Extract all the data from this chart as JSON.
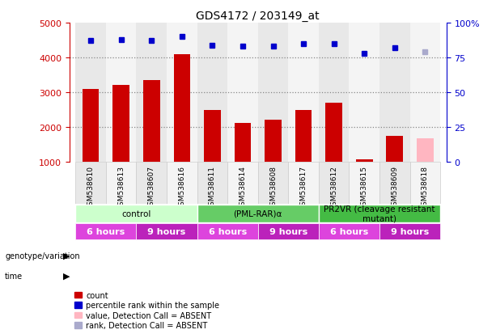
{
  "title": "GDS4172 / 203149_at",
  "samples": [
    "GSM538610",
    "GSM538613",
    "GSM538607",
    "GSM538616",
    "GSM538611",
    "GSM538614",
    "GSM538608",
    "GSM538617",
    "GSM538612",
    "GSM538615",
    "GSM538609",
    "GSM538618"
  ],
  "count_values": [
    3100,
    3220,
    3340,
    4100,
    2480,
    2120,
    2200,
    2480,
    2700,
    1060,
    1740,
    1680
  ],
  "absent_count": [
    false,
    false,
    false,
    false,
    false,
    false,
    false,
    false,
    false,
    false,
    false,
    true
  ],
  "percentile_values": [
    87,
    87.5,
    87,
    90,
    84,
    83,
    83,
    85,
    85,
    78,
    82,
    79
  ],
  "absent_percentile": [
    false,
    false,
    false,
    false,
    false,
    false,
    false,
    false,
    false,
    false,
    false,
    true
  ],
  "ylim_left": [
    1000,
    5000
  ],
  "ylim_right": [
    0,
    100
  ],
  "yticks_left": [
    1000,
    2000,
    3000,
    4000,
    5000
  ],
  "yticks_right": [
    0,
    25,
    50,
    75,
    100
  ],
  "ytick_labels_right": [
    "0",
    "25",
    "50",
    "75",
    "100%"
  ],
  "bar_color": "#cc0000",
  "bar_absent_color": "#ffb6c1",
  "dot_color": "#0000cc",
  "dot_absent_color": "#aaaacc",
  "genotype_groups": [
    {
      "label": "control",
      "start": 0,
      "end": 4,
      "color": "#ccffcc"
    },
    {
      "label": "(PML-RAR)α",
      "start": 4,
      "end": 8,
      "color": "#66cc66"
    },
    {
      "label": "PR2VR (cleavage resistant\nmutant)",
      "start": 8,
      "end": 12,
      "color": "#44bb44"
    }
  ],
  "time_groups": [
    {
      "label": "6 hours",
      "start": 0,
      "end": 2,
      "color": "#dd44dd"
    },
    {
      "label": "9 hours",
      "start": 2,
      "end": 4,
      "color": "#bb22bb"
    },
    {
      "label": "6 hours",
      "start": 4,
      "end": 6,
      "color": "#dd44dd"
    },
    {
      "label": "9 hours",
      "start": 6,
      "end": 8,
      "color": "#bb22bb"
    },
    {
      "label": "6 hours",
      "start": 8,
      "end": 10,
      "color": "#dd44dd"
    },
    {
      "label": "9 hours",
      "start": 10,
      "end": 12,
      "color": "#bb22bb"
    }
  ],
  "left_axis_color": "#cc0000",
  "right_axis_color": "#0000cc",
  "grid_color": "#888888",
  "bg_color": "#ffffff",
  "legend_items": [
    {
      "label": "count",
      "color": "#cc0000"
    },
    {
      "label": "percentile rank within the sample",
      "color": "#0000cc"
    },
    {
      "label": "value, Detection Call = ABSENT",
      "color": "#ffb6c1"
    },
    {
      "label": "rank, Detection Call = ABSENT",
      "color": "#aaaacc"
    }
  ]
}
